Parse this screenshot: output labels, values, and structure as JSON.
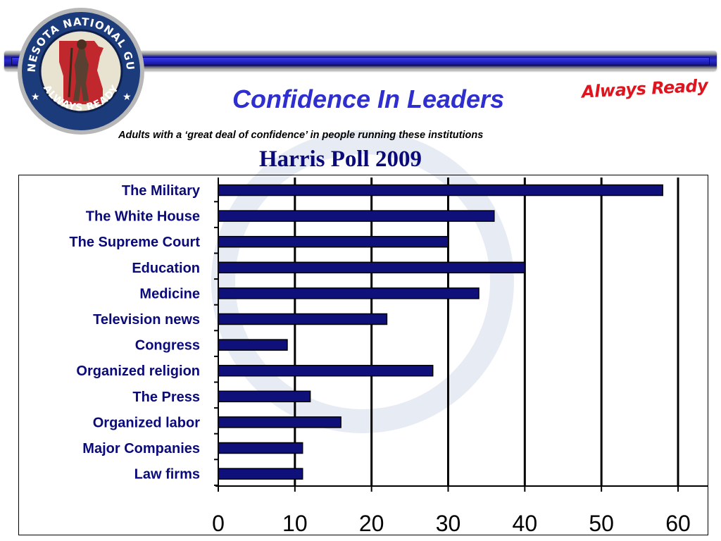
{
  "header": {
    "title": "Confidence In Leaders",
    "subtitle": "Adults with a ‘great deal of confidence’ in people running these institutions",
    "poll": "Harris Poll 2009",
    "motto": "Always Ready"
  },
  "logo": {
    "top_text": "MINNESOTA NATIONAL GUARD",
    "bottom_text": "ALWAYS READY"
  },
  "colors": {
    "bar_fill": "#10107a",
    "title": "#2f2fd0",
    "motto": "#e0141e",
    "label": "#0a0a7a"
  },
  "chart_data": {
    "type": "bar",
    "orientation": "horizontal",
    "categories": [
      "The Military",
      "The White House",
      "The Supreme Court",
      "Education",
      "Medicine",
      "Television news",
      "Congress",
      "Organized religion",
      "The Press",
      "Organized labor",
      "Major Companies",
      "Law firms"
    ],
    "values": [
      58,
      36,
      30,
      40,
      34,
      22,
      9,
      28,
      12,
      16,
      11,
      11
    ],
    "xlim": [
      0,
      60
    ],
    "xticks": [
      "0",
      "10",
      "20",
      "30",
      "40",
      "50",
      "60"
    ],
    "grid": "vertical"
  }
}
